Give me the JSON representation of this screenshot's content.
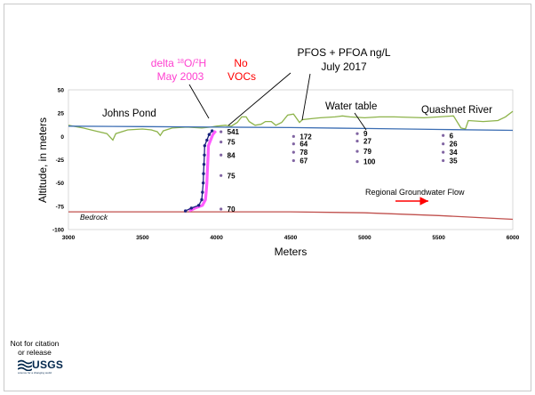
{
  "annotations": {
    "isotope_line1": "delta 18O/2H",
    "isotope_prefix": "delta ",
    "isotope_sup1": "18",
    "isotope_mid": "O/",
    "isotope_sup2": "2",
    "isotope_suffix": "H",
    "isotope_line2": "May 2003",
    "no_vocs_line1": "No",
    "no_vocs_line2": "VOCs",
    "pfas_line1": "PFOS + PFOA ng/L",
    "pfas_line2": "July 2017",
    "water_table": "Water table",
    "johns_pond": "Johns Pond",
    "quashnet_river": "Quashnet River",
    "bedrock": "Bedrock",
    "regional_flow": "Regional Groundwater Flow"
  },
  "colors": {
    "isotope_text": "#ff3fd0",
    "no_vocs_text": "#ff0000",
    "water_table_line": "#3b6db3",
    "land_surface_line": "#8db34a",
    "bedrock_line": "#c0504d",
    "flow_arrow": "#ff0000",
    "profile_dark": "#1a237e",
    "profile_magenta": "#ff40ff",
    "well_marker": "#8064a2"
  },
  "chart_data": {
    "type": "cross-section",
    "title": "",
    "xlabel": "Meters",
    "ylabel": "Altitude, in meters",
    "xlim": [
      3000,
      6000
    ],
    "ylim": [
      -100,
      50
    ],
    "x_ticks": [
      3000,
      3500,
      4000,
      4500,
      5000,
      5500,
      6000
    ],
    "y_ticks": [
      50,
      25,
      0,
      -25,
      -50,
      -75,
      -100
    ],
    "series": [
      {
        "name": "Water table",
        "points": [
          [
            3000,
            11
          ],
          [
            3500,
            10.5
          ],
          [
            4000,
            10
          ],
          [
            4500,
            9.5
          ],
          [
            5000,
            8.5
          ],
          [
            5500,
            7.5
          ],
          [
            6000,
            6.5
          ]
        ]
      },
      {
        "name": "",
        "role": "land surface",
        "points": [
          [
            3000,
            12
          ],
          [
            3100,
            9
          ],
          [
            3180,
            6
          ],
          [
            3260,
            3
          ],
          [
            3300,
            -4
          ],
          [
            3320,
            3
          ],
          [
            3400,
            7
          ],
          [
            3500,
            8
          ],
          [
            3560,
            7
          ],
          [
            3600,
            5
          ],
          [
            3620,
            1
          ],
          [
            3640,
            6
          ],
          [
            3700,
            9
          ],
          [
            3800,
            10
          ],
          [
            3900,
            9
          ],
          [
            3960,
            10
          ],
          [
            4000,
            11
          ],
          [
            4060,
            12
          ],
          [
            4100,
            11
          ],
          [
            4140,
            15
          ],
          [
            4170,
            21
          ],
          [
            4200,
            21
          ],
          [
            4220,
            16
          ],
          [
            4260,
            12
          ],
          [
            4300,
            13
          ],
          [
            4330,
            16
          ],
          [
            4370,
            16
          ],
          [
            4400,
            12
          ],
          [
            4440,
            15
          ],
          [
            4480,
            23
          ],
          [
            4520,
            24
          ],
          [
            4560,
            15
          ],
          [
            4580,
            18
          ],
          [
            4640,
            19
          ],
          [
            4700,
            20
          ],
          [
            4800,
            21
          ],
          [
            4850,
            22
          ],
          [
            4900,
            21
          ],
          [
            5000,
            20
          ],
          [
            5100,
            21
          ],
          [
            5200,
            21
          ],
          [
            5400,
            20
          ],
          [
            5500,
            21
          ],
          [
            5600,
            22
          ],
          [
            5650,
            9
          ],
          [
            5680,
            8
          ],
          [
            5700,
            17
          ],
          [
            5800,
            16
          ],
          [
            5900,
            17
          ],
          [
            5950,
            21
          ],
          [
            6000,
            27
          ]
        ]
      },
      {
        "name": "Bedrock",
        "points": [
          [
            3000,
            -81
          ],
          [
            3500,
            -81
          ],
          [
            4000,
            -81
          ],
          [
            4500,
            -81
          ],
          [
            5000,
            -82
          ],
          [
            5500,
            -85
          ],
          [
            6000,
            -89
          ]
        ]
      },
      {
        "name": "delta 18O/2H May 2003",
        "role": "profile",
        "points": [
          [
            3790,
            -80
          ],
          [
            3830,
            -77
          ],
          [
            3880,
            -74
          ],
          [
            3900,
            -68
          ],
          [
            3905,
            -60
          ],
          [
            3910,
            -50
          ],
          [
            3912,
            -40
          ],
          [
            3915,
            -30
          ],
          [
            3918,
            -20
          ],
          [
            3920,
            -10
          ],
          [
            3935,
            -4
          ],
          [
            3950,
            2
          ],
          [
            3970,
            6
          ]
        ]
      }
    ],
    "wells": [
      {
        "x": 4030,
        "y_values": [
          5,
          -6,
          -20,
          -42,
          -78
        ],
        "labels": [
          "541",
          "75",
          "84",
          "75",
          "70"
        ]
      },
      {
        "x": 4520,
        "y_values": [
          0,
          -8,
          -17,
          -26
        ],
        "labels": [
          "172",
          "64",
          "78",
          "67"
        ]
      },
      {
        "x": 4950,
        "y_values": [
          3,
          -5,
          -16,
          -27
        ],
        "labels": [
          "9",
          "27",
          "79",
          "100"
        ]
      },
      {
        "x": 5530,
        "y_values": [
          1,
          -8,
          -17,
          -26
        ],
        "labels": [
          "6",
          "26",
          "34",
          "35"
        ]
      }
    ]
  },
  "footer": {
    "disclaimer_line1": "Not for citation",
    "disclaimer_line2": "or release",
    "logo_word": "USGS",
    "logo_tagline": "science for a changing world"
  }
}
